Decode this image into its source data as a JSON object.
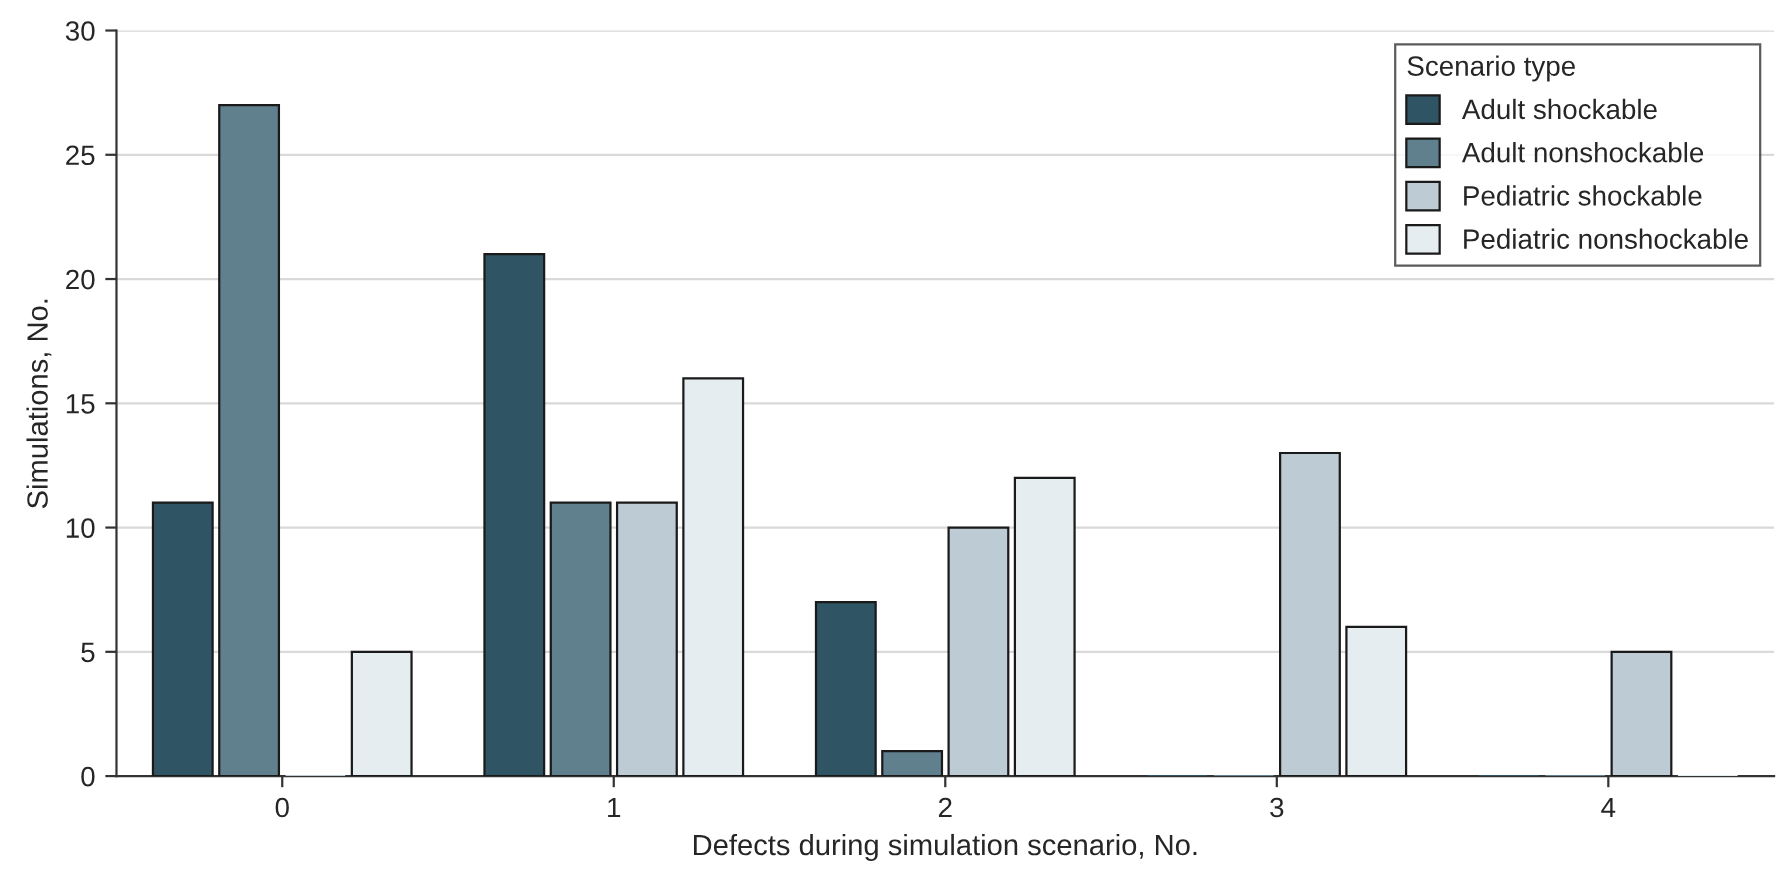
{
  "chart_data": {
    "type": "bar",
    "xlabel": "Defects during simulation scenario, No.",
    "ylabel": "Simulations, No.",
    "legend_title": "Scenario type",
    "categories": [
      "0",
      "1",
      "2",
      "3",
      "4"
    ],
    "series": [
      {
        "name": "Adult shockable",
        "color": "#2f5463",
        "values": [
          11,
          21,
          7,
          0,
          0
        ]
      },
      {
        "name": "Adult nonshockable",
        "color": "#5f808c",
        "values": [
          27,
          11,
          1,
          0,
          0
        ]
      },
      {
        "name": "Pediatric shockable",
        "color": "#bdccd4",
        "values": [
          0,
          11,
          10,
          13,
          5
        ]
      },
      {
        "name": "Pediatric nonshockable",
        "color": "#e6edf0",
        "values": [
          5,
          16,
          12,
          6,
          0
        ]
      }
    ],
    "ylim": [
      0,
      30
    ],
    "yticks": [
      0,
      5,
      10,
      15,
      20,
      25,
      30
    ],
    "grid": "y",
    "legend": "top right"
  }
}
